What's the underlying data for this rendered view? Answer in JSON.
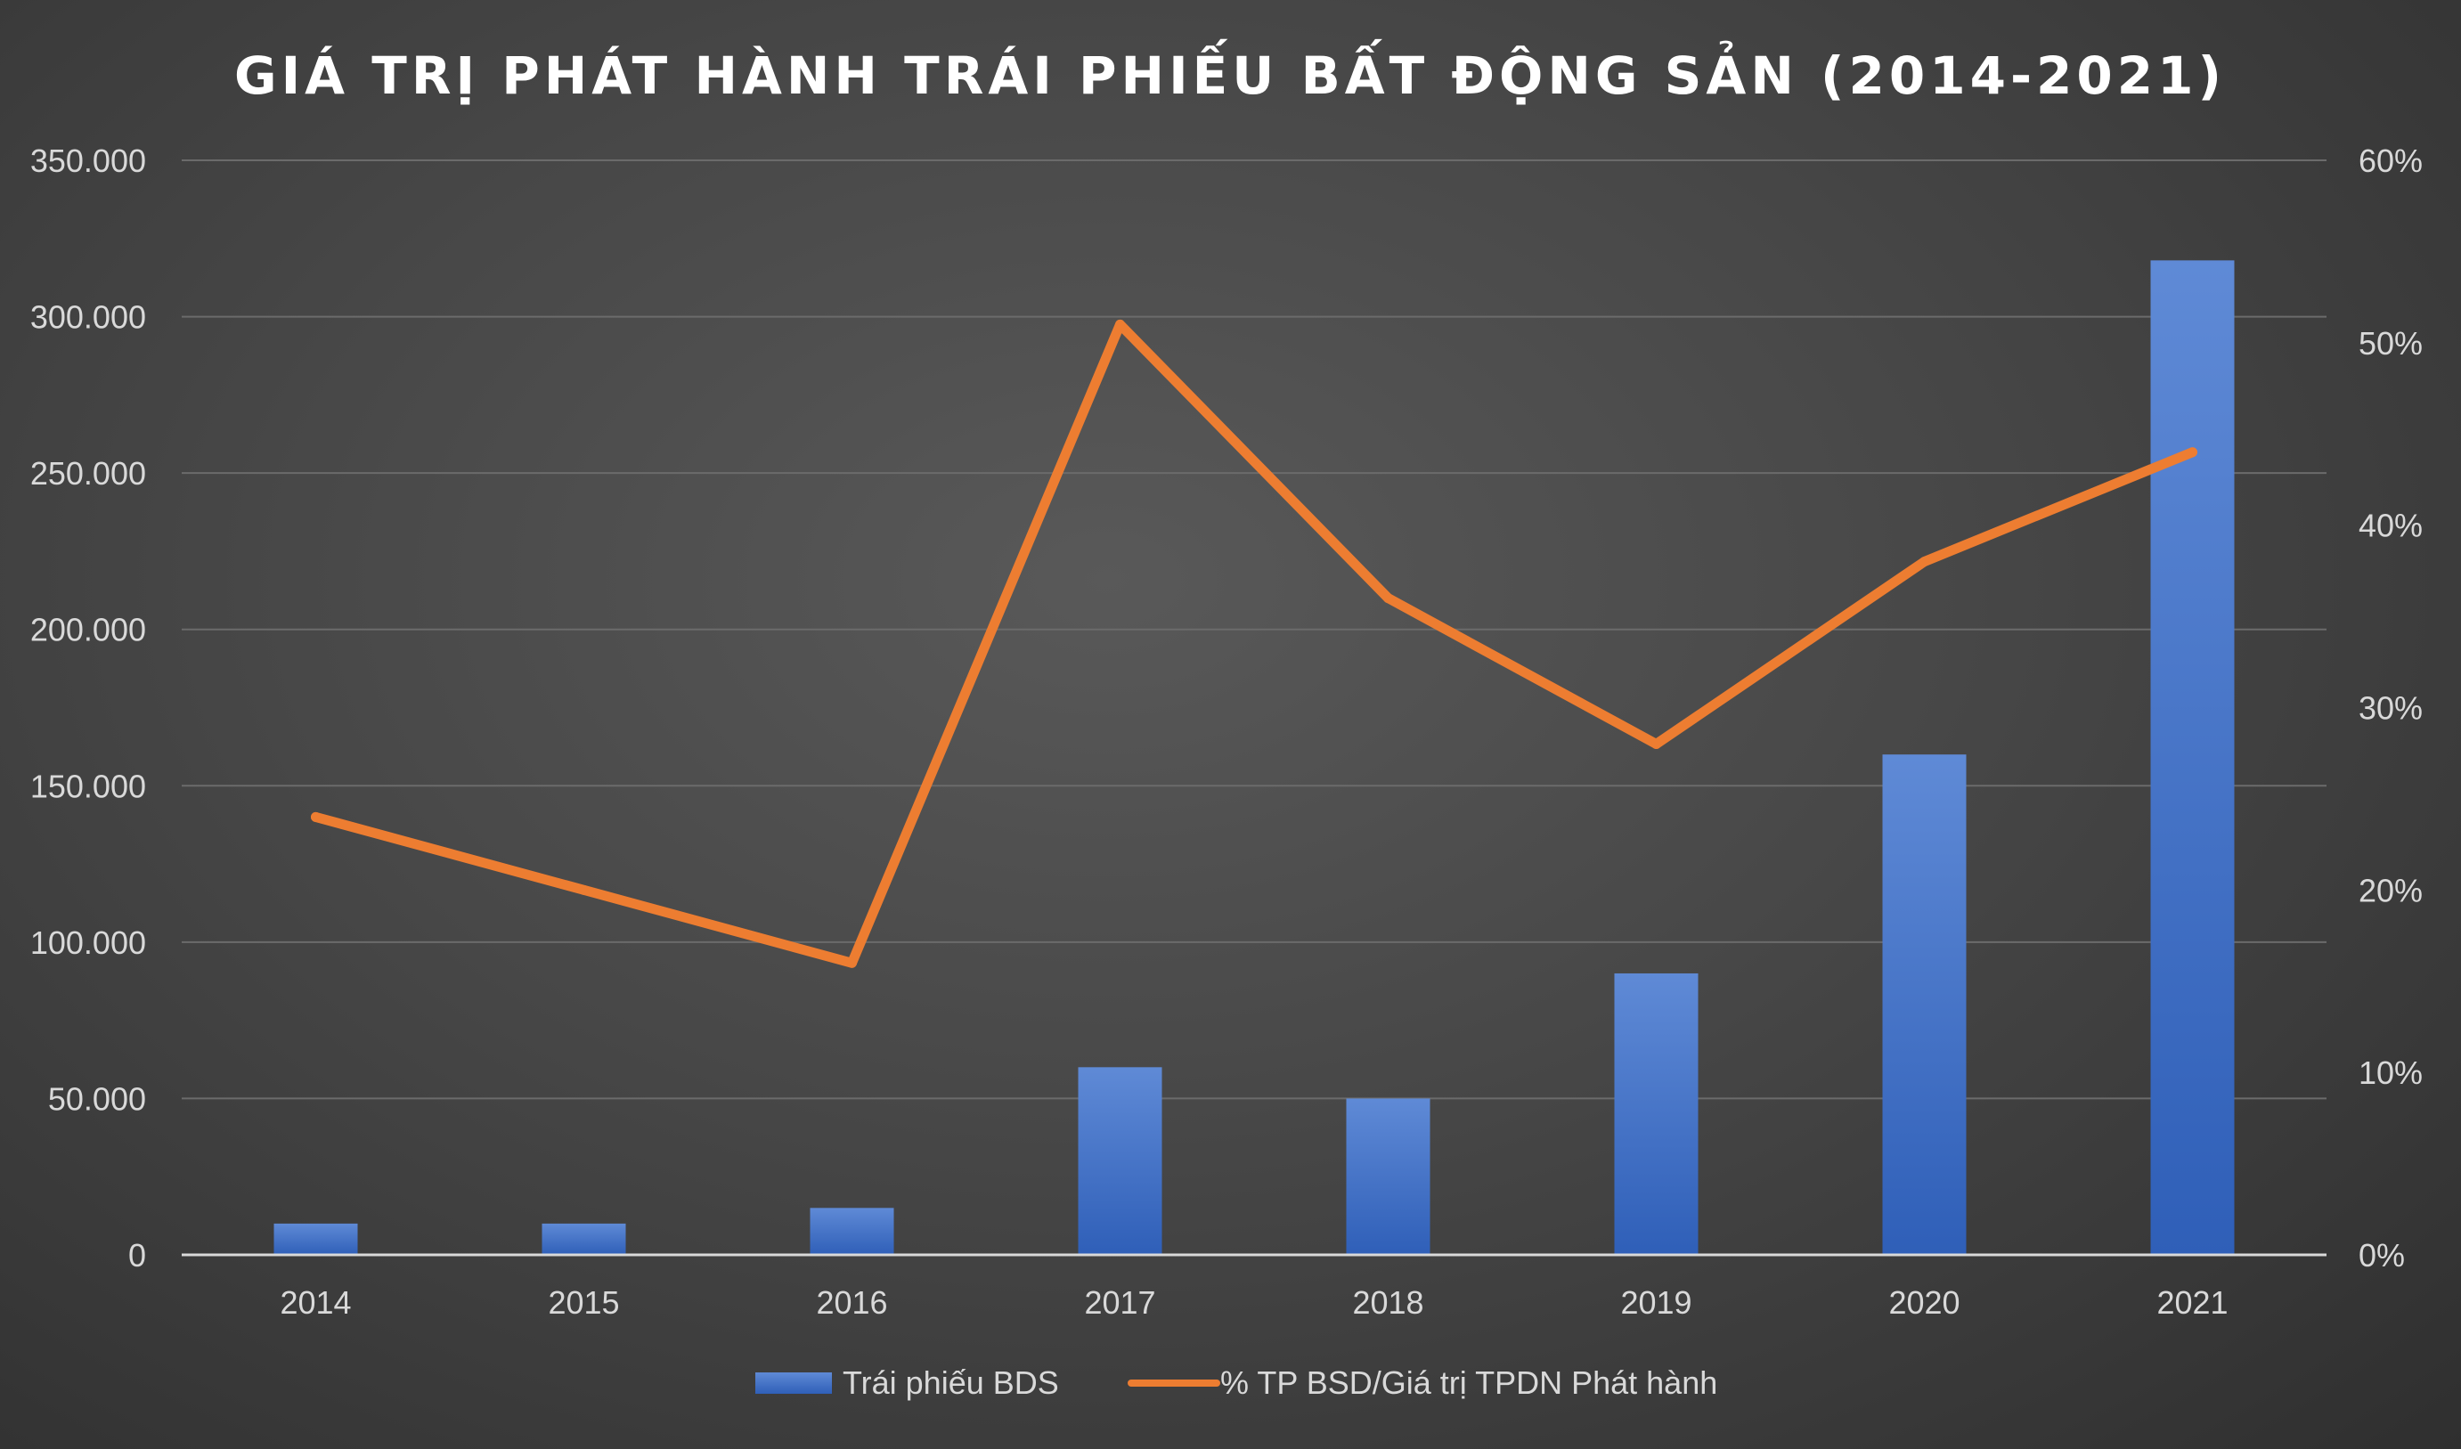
{
  "chart_data": {
    "type": "bar+line",
    "title": "GIÁ TRỊ PHÁT HÀNH TRÁI PHIẾU BẤT ĐỘNG SẢN (2014-2021)",
    "categories": [
      "2014",
      "2015",
      "2016",
      "2017",
      "2018",
      "2019",
      "2020",
      "2021"
    ],
    "series": [
      {
        "name": "Trái phiếu BDS",
        "type": "bar",
        "axis": "left",
        "color": "#4472C4",
        "values": [
          10000,
          10000,
          15000,
          60000,
          50000,
          90000,
          160000,
          318000
        ]
      },
      {
        "name": "% TP BSD/Giá trị TPDN Phát hành",
        "type": "line",
        "axis": "right",
        "color": "#ED7D31",
        "values": [
          0.24,
          0.2,
          0.16,
          0.51,
          0.36,
          0.28,
          0.38,
          0.44
        ]
      }
    ],
    "y_left": {
      "ylim": [
        0,
        350000
      ],
      "ticks": [
        0,
        50000,
        100000,
        150000,
        200000,
        250000,
        300000,
        350000
      ],
      "tick_labels": [
        "0",
        "50.000",
        "100.000",
        "150.000",
        "200.000",
        "250.000",
        "300.000",
        "350.000"
      ]
    },
    "y_right": {
      "ylim": [
        0,
        0.6
      ],
      "ticks": [
        0,
        0.1,
        0.2,
        0.3,
        0.4,
        0.5,
        0.6
      ],
      "tick_labels": [
        "0%",
        "10%",
        "20%",
        "30%",
        "40%",
        "50%",
        "60%"
      ]
    },
    "grid": true,
    "legend": "bottom"
  }
}
